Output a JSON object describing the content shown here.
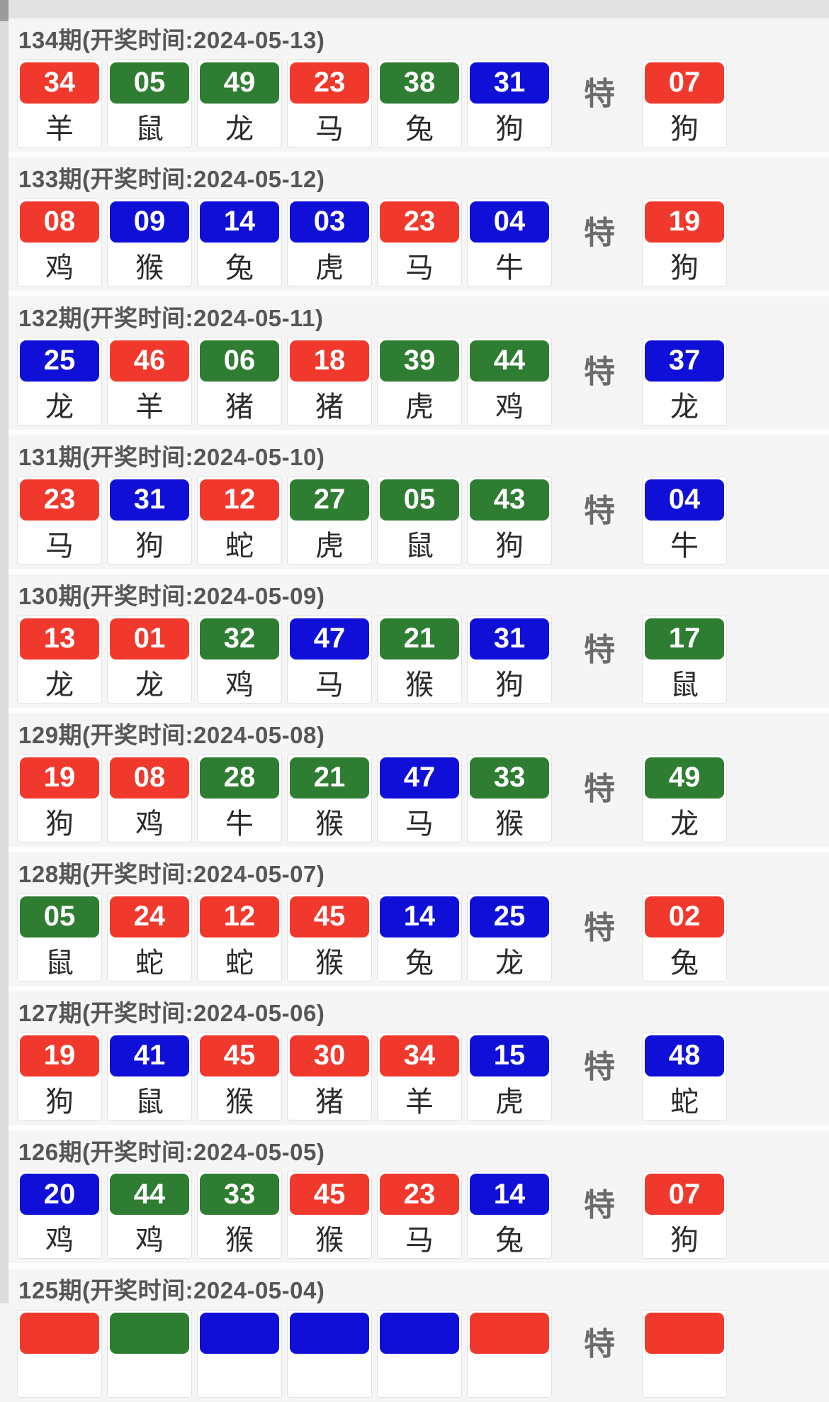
{
  "special_label": "特",
  "colors": {
    "red": "#f0392c",
    "green": "#2e7d32",
    "blue": "#0f0fd8"
  },
  "periods": [
    {
      "title": "134期(开奖时间:2024-05-13)",
      "balls": [
        {
          "num": "34",
          "color": "red",
          "zodiac": "羊"
        },
        {
          "num": "05",
          "color": "green",
          "zodiac": "鼠"
        },
        {
          "num": "49",
          "color": "green",
          "zodiac": "龙"
        },
        {
          "num": "23",
          "color": "red",
          "zodiac": "马"
        },
        {
          "num": "38",
          "color": "green",
          "zodiac": "兔"
        },
        {
          "num": "31",
          "color": "blue",
          "zodiac": "狗"
        }
      ],
      "special": {
        "num": "07",
        "color": "red",
        "zodiac": "狗"
      }
    },
    {
      "title": "133期(开奖时间:2024-05-12)",
      "balls": [
        {
          "num": "08",
          "color": "red",
          "zodiac": "鸡"
        },
        {
          "num": "09",
          "color": "blue",
          "zodiac": "猴"
        },
        {
          "num": "14",
          "color": "blue",
          "zodiac": "兔"
        },
        {
          "num": "03",
          "color": "blue",
          "zodiac": "虎"
        },
        {
          "num": "23",
          "color": "red",
          "zodiac": "马"
        },
        {
          "num": "04",
          "color": "blue",
          "zodiac": "牛"
        }
      ],
      "special": {
        "num": "19",
        "color": "red",
        "zodiac": "狗"
      }
    },
    {
      "title": "132期(开奖时间:2024-05-11)",
      "balls": [
        {
          "num": "25",
          "color": "blue",
          "zodiac": "龙"
        },
        {
          "num": "46",
          "color": "red",
          "zodiac": "羊"
        },
        {
          "num": "06",
          "color": "green",
          "zodiac": "猪"
        },
        {
          "num": "18",
          "color": "red",
          "zodiac": "猪"
        },
        {
          "num": "39",
          "color": "green",
          "zodiac": "虎"
        },
        {
          "num": "44",
          "color": "green",
          "zodiac": "鸡"
        }
      ],
      "special": {
        "num": "37",
        "color": "blue",
        "zodiac": "龙"
      }
    },
    {
      "title": "131期(开奖时间:2024-05-10)",
      "balls": [
        {
          "num": "23",
          "color": "red",
          "zodiac": "马"
        },
        {
          "num": "31",
          "color": "blue",
          "zodiac": "狗"
        },
        {
          "num": "12",
          "color": "red",
          "zodiac": "蛇"
        },
        {
          "num": "27",
          "color": "green",
          "zodiac": "虎"
        },
        {
          "num": "05",
          "color": "green",
          "zodiac": "鼠"
        },
        {
          "num": "43",
          "color": "green",
          "zodiac": "狗"
        }
      ],
      "special": {
        "num": "04",
        "color": "blue",
        "zodiac": "牛"
      }
    },
    {
      "title": "130期(开奖时间:2024-05-09)",
      "balls": [
        {
          "num": "13",
          "color": "red",
          "zodiac": "龙"
        },
        {
          "num": "01",
          "color": "red",
          "zodiac": "龙"
        },
        {
          "num": "32",
          "color": "green",
          "zodiac": "鸡"
        },
        {
          "num": "47",
          "color": "blue",
          "zodiac": "马"
        },
        {
          "num": "21",
          "color": "green",
          "zodiac": "猴"
        },
        {
          "num": "31",
          "color": "blue",
          "zodiac": "狗"
        }
      ],
      "special": {
        "num": "17",
        "color": "green",
        "zodiac": "鼠"
      }
    },
    {
      "title": "129期(开奖时间:2024-05-08)",
      "balls": [
        {
          "num": "19",
          "color": "red",
          "zodiac": "狗"
        },
        {
          "num": "08",
          "color": "red",
          "zodiac": "鸡"
        },
        {
          "num": "28",
          "color": "green",
          "zodiac": "牛"
        },
        {
          "num": "21",
          "color": "green",
          "zodiac": "猴"
        },
        {
          "num": "47",
          "color": "blue",
          "zodiac": "马"
        },
        {
          "num": "33",
          "color": "green",
          "zodiac": "猴"
        }
      ],
      "special": {
        "num": "49",
        "color": "green",
        "zodiac": "龙"
      }
    },
    {
      "title": "128期(开奖时间:2024-05-07)",
      "balls": [
        {
          "num": "05",
          "color": "green",
          "zodiac": "鼠"
        },
        {
          "num": "24",
          "color": "red",
          "zodiac": "蛇"
        },
        {
          "num": "12",
          "color": "red",
          "zodiac": "蛇"
        },
        {
          "num": "45",
          "color": "red",
          "zodiac": "猴"
        },
        {
          "num": "14",
          "color": "blue",
          "zodiac": "兔"
        },
        {
          "num": "25",
          "color": "blue",
          "zodiac": "龙"
        }
      ],
      "special": {
        "num": "02",
        "color": "red",
        "zodiac": "兔"
      }
    },
    {
      "title": "127期(开奖时间:2024-05-06)",
      "balls": [
        {
          "num": "19",
          "color": "red",
          "zodiac": "狗"
        },
        {
          "num": "41",
          "color": "blue",
          "zodiac": "鼠"
        },
        {
          "num": "45",
          "color": "red",
          "zodiac": "猴"
        },
        {
          "num": "30",
          "color": "red",
          "zodiac": "猪"
        },
        {
          "num": "34",
          "color": "red",
          "zodiac": "羊"
        },
        {
          "num": "15",
          "color": "blue",
          "zodiac": "虎"
        }
      ],
      "special": {
        "num": "48",
        "color": "blue",
        "zodiac": "蛇"
      }
    },
    {
      "title": "126期(开奖时间:2024-05-05)",
      "balls": [
        {
          "num": "20",
          "color": "blue",
          "zodiac": "鸡"
        },
        {
          "num": "44",
          "color": "green",
          "zodiac": "鸡"
        },
        {
          "num": "33",
          "color": "green",
          "zodiac": "猴"
        },
        {
          "num": "45",
          "color": "red",
          "zodiac": "猴"
        },
        {
          "num": "23",
          "color": "red",
          "zodiac": "马"
        },
        {
          "num": "14",
          "color": "blue",
          "zodiac": "兔"
        }
      ],
      "special": {
        "num": "07",
        "color": "red",
        "zodiac": "狗"
      }
    },
    {
      "title": "125期(开奖时间:2024-05-04)",
      "balls": [
        {
          "num": "",
          "color": "red",
          "zodiac": ""
        },
        {
          "num": "",
          "color": "green",
          "zodiac": ""
        },
        {
          "num": "",
          "color": "blue",
          "zodiac": ""
        },
        {
          "num": "",
          "color": "blue",
          "zodiac": ""
        },
        {
          "num": "",
          "color": "blue",
          "zodiac": ""
        },
        {
          "num": "",
          "color": "red",
          "zodiac": ""
        }
      ],
      "special": {
        "num": "",
        "color": "red",
        "zodiac": ""
      }
    }
  ]
}
